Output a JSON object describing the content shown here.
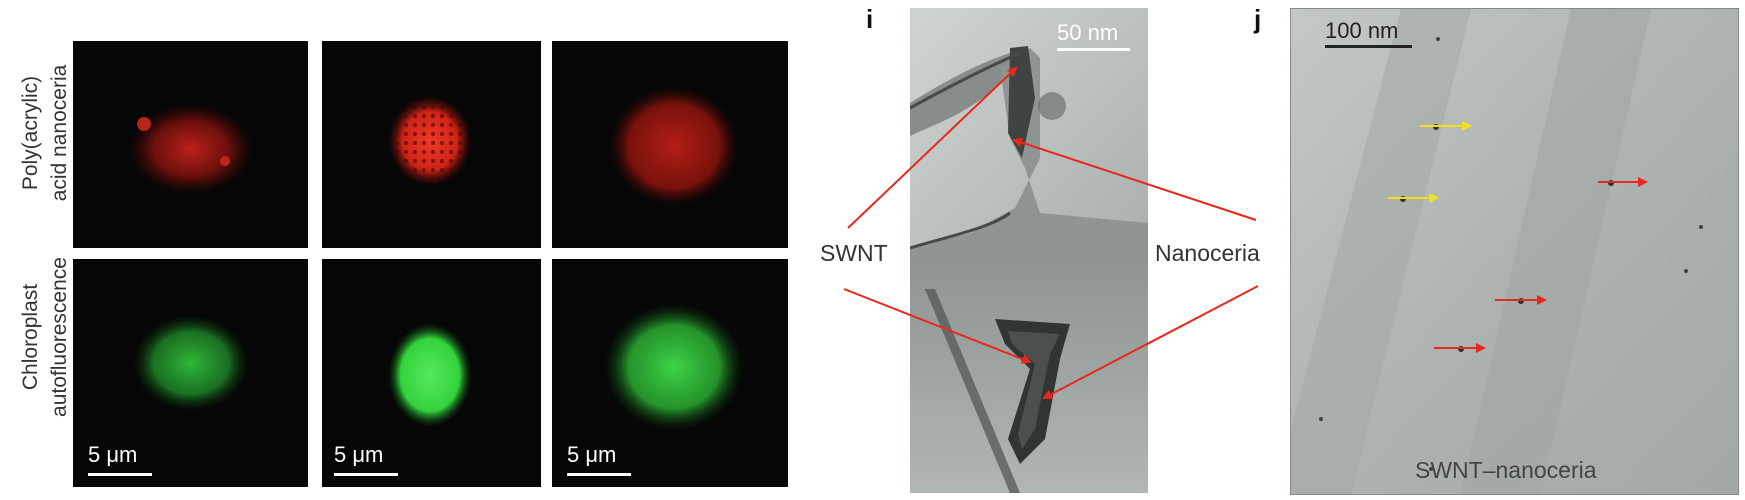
{
  "row_labels": {
    "top": [
      "Poly(acrylic)",
      "acid nanoceria"
    ],
    "bottom": [
      "Chloroplast",
      "autofluorescence"
    ]
  },
  "scale_bars": {
    "fluorescence": "5 μm",
    "panel_i": "50 nm",
    "panel_j": "100 nm"
  },
  "panel_letters": {
    "i": "i",
    "j": "j"
  },
  "annotations": {
    "swnt": "SWNT",
    "nanoceria": "Nanoceria",
    "panel_j_caption": "SWNT–nanoceria"
  },
  "colors": {
    "red_fluorescence": "#d11f16",
    "green_fluorescence": "#2fd33a",
    "arrow_red": "#e8281c",
    "arrow_yellow": "#f2e21d",
    "tem_gray": "#b7bdbb"
  }
}
